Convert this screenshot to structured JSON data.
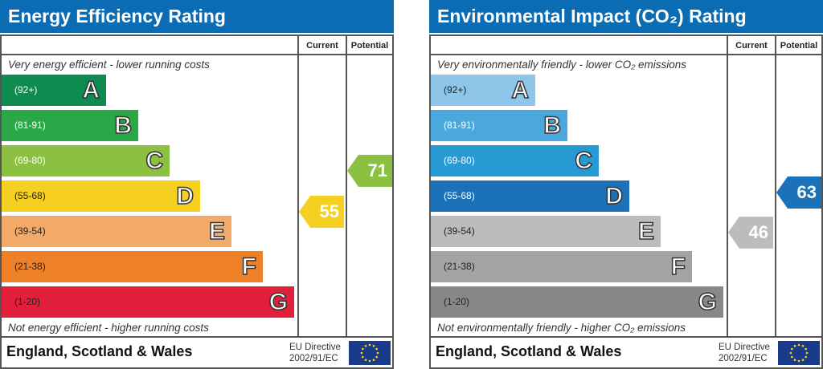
{
  "chart_data": [
    {
      "type": "bar",
      "title": "Energy Efficiency Rating",
      "columns": [
        "Current",
        "Potential"
      ],
      "top_note": "Very energy efficient - lower running costs",
      "bottom_note": "Not energy efficient - higher running costs",
      "bands": [
        {
          "letter": "A",
          "range": "(92+)",
          "color": "#0f8a50"
        },
        {
          "letter": "B",
          "range": "(81-91)",
          "color": "#2aa847"
        },
        {
          "letter": "C",
          "range": "(69-80)",
          "color": "#8cc040"
        },
        {
          "letter": "D",
          "range": "(55-68)",
          "color": "#f5d020"
        },
        {
          "letter": "E",
          "range": "(39-54)",
          "color": "#f2aa6a"
        },
        {
          "letter": "F",
          "range": "(21-38)",
          "color": "#ee8028"
        },
        {
          "letter": "G",
          "range": "(1-20)",
          "color": "#e2203c"
        }
      ],
      "current": {
        "value": 55,
        "color": "#f5d020"
      },
      "potential": {
        "value": 71,
        "color": "#8cc040"
      },
      "footer": "England, Scotland & Wales",
      "eu_directive": [
        "EU Directive",
        "2002/91/EC"
      ]
    },
    {
      "type": "bar",
      "title": "Environmental Impact (CO₂) Rating",
      "columns": [
        "Current",
        "Potential"
      ],
      "top_note": "Very environmentally friendly - lower CO₂ emissions",
      "bottom_note": "Not environmentally friendly - higher CO₂ emissions",
      "bands": [
        {
          "letter": "A",
          "range": "(92+)",
          "color": "#8dc6e8"
        },
        {
          "letter": "B",
          "range": "(81-91)",
          "color": "#4aa8dc"
        },
        {
          "letter": "C",
          "range": "(69-80)",
          "color": "#279ad4"
        },
        {
          "letter": "D",
          "range": "(55-68)",
          "color": "#1b72b8"
        },
        {
          "letter": "E",
          "range": "(39-54)",
          "color": "#bcbcbc"
        },
        {
          "letter": "F",
          "range": "(21-38)",
          "color": "#a3a3a3"
        },
        {
          "letter": "G",
          "range": "(1-20)",
          "color": "#888888"
        }
      ],
      "current": {
        "value": 46,
        "color": "#bcbcbc"
      },
      "potential": {
        "value": 63,
        "color": "#1b72b8"
      },
      "footer": "England, Scotland & Wales",
      "eu_directive": [
        "EU Directive",
        "2002/91/EC"
      ]
    }
  ]
}
